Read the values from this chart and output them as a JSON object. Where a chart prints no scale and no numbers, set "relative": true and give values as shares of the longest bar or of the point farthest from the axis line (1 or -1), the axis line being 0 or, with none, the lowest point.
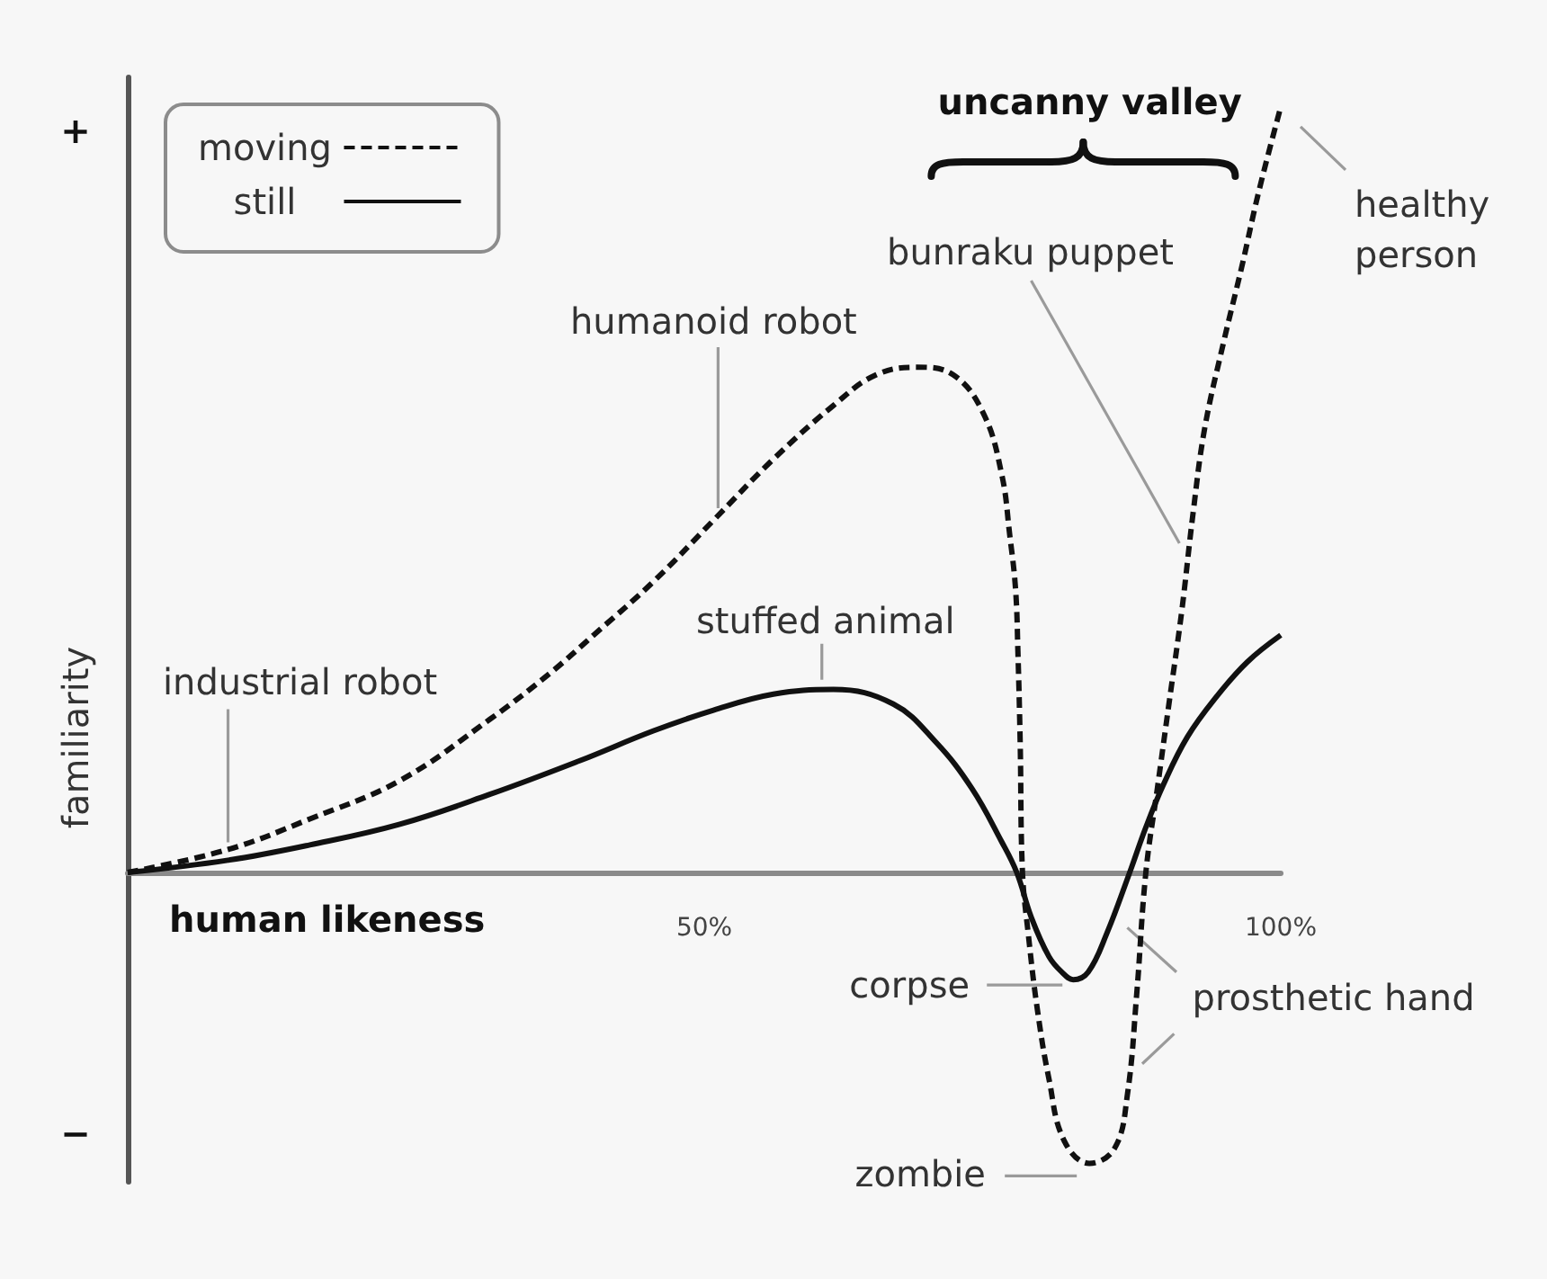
{
  "chart_data": {
    "type": "line",
    "relative": true,
    "xlabel": "human likeness",
    "ylabel": "familiarity",
    "xlim": [
      0,
      100
    ],
    "xticks": [
      {
        "value": 50,
        "label": "50%"
      },
      {
        "value": 100,
        "label": "100%"
      }
    ],
    "marker": "none",
    "legend": "top left",
    "series": [
      {
        "name": "moving",
        "color": "#111111",
        "line_style": "dashed",
        "x": [
          0,
          8.7,
          15.8,
          23.6,
          31.4,
          36.6,
          40.4,
          45.6,
          50.8,
          56.0,
          61.2,
          64.9,
          68.5,
          71.6,
          74.2,
          75.8,
          76.5,
          77.0,
          77.2,
          77.4,
          77.6,
          78.1,
          78.9,
          79.9,
          81.2,
          83.4,
          85.6,
          86.7,
          87.5,
          88.3,
          89.3,
          90.3,
          91.4,
          92.4,
          93.4,
          95.0,
          96.6,
          98.1,
          100
        ],
        "values": [
          0,
          0.03,
          0.07,
          0.12,
          0.2,
          0.26,
          0.31,
          0.38,
          0.46,
          0.54,
          0.61,
          0.65,
          0.66,
          0.65,
          0.6,
          0.52,
          0.44,
          0.37,
          0.29,
          0.17,
          0,
          -0.08,
          -0.18,
          -0.27,
          -0.35,
          -0.38,
          -0.36,
          -0.29,
          -0.16,
          0,
          0.11,
          0.22,
          0.34,
          0.47,
          0.58,
          0.69,
          0.79,
          0.89,
          1
        ]
      },
      {
        "name": "still",
        "color": "#111111",
        "line_style": "solid",
        "x": [
          0,
          8.7,
          15.8,
          23.6,
          31.4,
          39.2,
          45.6,
          50.8,
          56.0,
          61.2,
          66.4,
          70.1,
          73.2,
          75.8,
          77.1,
          78.4,
          79.9,
          81.0,
          82.0,
          83.3,
          84.9,
          86.9,
          88.3,
          89.8,
          91.9,
          94.5,
          97.1,
          100
        ],
        "values": [
          0,
          0.016,
          0.036,
          0.063,
          0.102,
          0.146,
          0.185,
          0.212,
          0.233,
          0.239,
          0.22,
          0.17,
          0.11,
          0.04,
          0,
          -0.06,
          -0.11,
          -0.13,
          -0.14,
          -0.13,
          -0.08,
          0,
          0.059,
          0.114,
          0.177,
          0.231,
          0.275,
          0.31
        ]
      }
    ],
    "annotations": [
      "+",
      "−",
      {
        "text": "industrial robot",
        "x": 8.7,
        "y": 0.03
      },
      {
        "text": "humanoid robot",
        "x": 51.2,
        "y": 0.47
      },
      {
        "text": "stuffed animal",
        "x": 60.2,
        "y": 0.24
      },
      {
        "text": "bunraku puppet",
        "x": 91.6,
        "y": 0.42
      },
      {
        "text": "healthy person",
        "x": 100,
        "y": 1
      },
      {
        "text": "corpse",
        "x": 82.0,
        "y": -0.14
      },
      {
        "text": "zombie",
        "x": 83.4,
        "y": -0.38
      },
      {
        "text": "prosthetic hand",
        "x": 85.6,
        "y": -0.05
      },
      "uncanny valley"
    ]
  }
}
